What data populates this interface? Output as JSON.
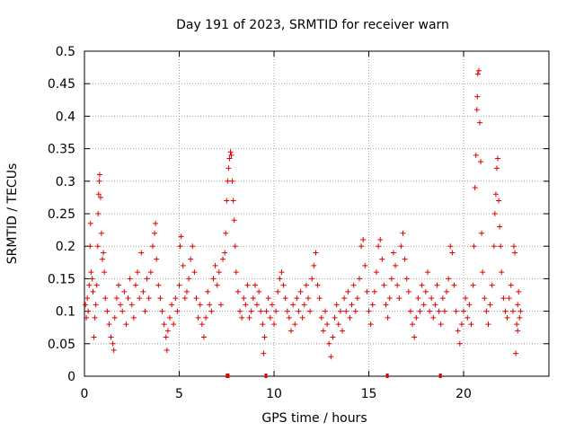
{
  "chart_data": {
    "type": "scatter",
    "title": "Day 191 of 2023, SRMTID for receiver warn",
    "xlabel": "GPS time / hours",
    "ylabel": "SRMTID / TECUs",
    "xlim": [
      0,
      24.5
    ],
    "ylim": [
      0,
      0.5
    ],
    "xticks": [
      0,
      5,
      10,
      15,
      20
    ],
    "yticks": [
      0,
      0.05,
      0.1,
      0.15,
      0.2,
      0.25,
      0.3,
      0.35,
      0.4,
      0.45,
      0.5
    ],
    "grid": true,
    "marker": "plus",
    "color": "#e00000",
    "series": [
      {
        "name": "SRMTID",
        "points": [
          [
            0.05,
            0.11
          ],
          [
            0.1,
            0.09
          ],
          [
            0.15,
            0.12
          ],
          [
            0.2,
            0.1
          ],
          [
            0.25,
            0.14
          ],
          [
            0.3,
            0.2
          ],
          [
            0.32,
            0.235
          ],
          [
            0.35,
            0.16
          ],
          [
            0.4,
            0.15
          ],
          [
            0.45,
            0.13
          ],
          [
            0.5,
            0.06
          ],
          [
            0.55,
            0.09
          ],
          [
            0.6,
            0.11
          ],
          [
            0.65,
            0.14
          ],
          [
            0.7,
            0.2
          ],
          [
            0.72,
            0.25
          ],
          [
            0.75,
            0.28
          ],
          [
            0.78,
            0.3
          ],
          [
            0.8,
            0.31
          ],
          [
            0.85,
            0.275
          ],
          [
            0.9,
            0.22
          ],
          [
            0.95,
            0.18
          ],
          [
            1.0,
            0.19
          ],
          [
            1.05,
            0.16
          ],
          [
            1.1,
            0.12
          ],
          [
            1.2,
            0.1
          ],
          [
            1.3,
            0.08
          ],
          [
            1.4,
            0.06
          ],
          [
            1.5,
            0.05
          ],
          [
            1.55,
            0.04
          ],
          [
            1.6,
            0.09
          ],
          [
            1.7,
            0.12
          ],
          [
            1.8,
            0.14
          ],
          [
            1.9,
            0.11
          ],
          [
            2.0,
            0.1
          ],
          [
            2.1,
            0.13
          ],
          [
            2.2,
            0.08
          ],
          [
            2.3,
            0.12
          ],
          [
            2.4,
            0.15
          ],
          [
            2.5,
            0.11
          ],
          [
            2.6,
            0.09
          ],
          [
            2.7,
            0.14
          ],
          [
            2.8,
            0.16
          ],
          [
            2.9,
            0.12
          ],
          [
            3.0,
            0.19
          ],
          [
            3.1,
            0.13
          ],
          [
            3.2,
            0.1
          ],
          [
            3.3,
            0.15
          ],
          [
            3.4,
            0.12
          ],
          [
            3.5,
            0.16
          ],
          [
            3.6,
            0.2
          ],
          [
            3.7,
            0.22
          ],
          [
            3.75,
            0.235
          ],
          [
            3.8,
            0.18
          ],
          [
            3.9,
            0.14
          ],
          [
            4.0,
            0.12
          ],
          [
            4.1,
            0.1
          ],
          [
            4.2,
            0.08
          ],
          [
            4.3,
            0.06
          ],
          [
            4.35,
            0.04
          ],
          [
            4.4,
            0.07
          ],
          [
            4.5,
            0.09
          ],
          [
            4.6,
            0.11
          ],
          [
            4.7,
            0.08
          ],
          [
            4.8,
            0.12
          ],
          [
            4.9,
            0.1
          ],
          [
            5.0,
            0.14
          ],
          [
            5.05,
            0.2
          ],
          [
            5.1,
            0.215
          ],
          [
            5.2,
            0.17
          ],
          [
            5.3,
            0.12
          ],
          [
            5.4,
            0.13
          ],
          [
            5.5,
            0.15
          ],
          [
            5.6,
            0.18
          ],
          [
            5.7,
            0.2
          ],
          [
            5.8,
            0.16
          ],
          [
            5.9,
            0.12
          ],
          [
            6.0,
            0.09
          ],
          [
            6.1,
            0.11
          ],
          [
            6.2,
            0.08
          ],
          [
            6.3,
            0.06
          ],
          [
            6.4,
            0.09
          ],
          [
            6.5,
            0.13
          ],
          [
            6.6,
            0.11
          ],
          [
            6.7,
            0.1
          ],
          [
            6.8,
            0.15
          ],
          [
            6.9,
            0.17
          ],
          [
            7.0,
            0.14
          ],
          [
            7.1,
            0.16
          ],
          [
            7.2,
            0.11
          ],
          [
            7.3,
            0.18
          ],
          [
            7.4,
            0.19
          ],
          [
            7.45,
            0.22
          ],
          [
            7.5,
            0.27
          ],
          [
            7.55,
            0.3
          ],
          [
            7.6,
            0.32
          ],
          [
            7.65,
            0.335
          ],
          [
            7.7,
            0.345
          ],
          [
            7.75,
            0.34
          ],
          [
            7.8,
            0.3
          ],
          [
            7.85,
            0.27
          ],
          [
            7.9,
            0.24
          ],
          [
            7.95,
            0.2
          ],
          [
            8.0,
            0.16
          ],
          [
            8.1,
            0.13
          ],
          [
            8.2,
            0.1
          ],
          [
            8.3,
            0.09
          ],
          [
            8.4,
            0.12
          ],
          [
            8.5,
            0.11
          ],
          [
            8.6,
            0.14
          ],
          [
            8.7,
            0.09
          ],
          [
            8.8,
            0.1
          ],
          [
            8.9,
            0.12
          ],
          [
            9.0,
            0.14
          ],
          [
            9.1,
            0.11
          ],
          [
            9.2,
            0.13
          ],
          [
            9.3,
            0.1
          ],
          [
            9.4,
            0.08
          ],
          [
            9.45,
            0.035
          ],
          [
            9.5,
            0.06
          ],
          [
            9.6,
            0.1
          ],
          [
            9.7,
            0.12
          ],
          [
            9.8,
            0.09
          ],
          [
            9.9,
            0.11
          ],
          [
            10.0,
            0.08
          ],
          [
            10.1,
            0.1
          ],
          [
            10.2,
            0.13
          ],
          [
            10.3,
            0.15
          ],
          [
            10.4,
            0.16
          ],
          [
            10.5,
            0.14
          ],
          [
            10.6,
            0.12
          ],
          [
            10.7,
            0.1
          ],
          [
            10.8,
            0.09
          ],
          [
            10.9,
            0.07
          ],
          [
            11.0,
            0.11
          ],
          [
            11.1,
            0.08
          ],
          [
            11.2,
            0.12
          ],
          [
            11.3,
            0.1
          ],
          [
            11.4,
            0.13
          ],
          [
            11.5,
            0.09
          ],
          [
            11.6,
            0.11
          ],
          [
            11.7,
            0.14
          ],
          [
            11.8,
            0.12
          ],
          [
            11.9,
            0.1
          ],
          [
            12.0,
            0.15
          ],
          [
            12.1,
            0.17
          ],
          [
            12.2,
            0.19
          ],
          [
            12.3,
            0.14
          ],
          [
            12.4,
            0.12
          ],
          [
            12.5,
            0.09
          ],
          [
            12.6,
            0.07
          ],
          [
            12.7,
            0.1
          ],
          [
            12.8,
            0.08
          ],
          [
            12.9,
            0.05
          ],
          [
            13.0,
            0.03
          ],
          [
            13.1,
            0.06
          ],
          [
            13.2,
            0.09
          ],
          [
            13.3,
            0.11
          ],
          [
            13.4,
            0.08
          ],
          [
            13.5,
            0.1
          ],
          [
            13.6,
            0.07
          ],
          [
            13.7,
            0.12
          ],
          [
            13.8,
            0.1
          ],
          [
            13.9,
            0.13
          ],
          [
            14.0,
            0.09
          ],
          [
            14.1,
            0.11
          ],
          [
            14.2,
            0.14
          ],
          [
            14.3,
            0.1
          ],
          [
            14.4,
            0.12
          ],
          [
            14.5,
            0.15
          ],
          [
            14.6,
            0.2
          ],
          [
            14.7,
            0.21
          ],
          [
            14.8,
            0.17
          ],
          [
            14.9,
            0.13
          ],
          [
            15.0,
            0.1
          ],
          [
            15.1,
            0.08
          ],
          [
            15.2,
            0.11
          ],
          [
            15.3,
            0.13
          ],
          [
            15.4,
            0.16
          ],
          [
            15.5,
            0.2
          ],
          [
            15.6,
            0.21
          ],
          [
            15.7,
            0.18
          ],
          [
            15.8,
            0.14
          ],
          [
            15.9,
            0.11
          ],
          [
            16.0,
            0.09
          ],
          [
            16.1,
            0.12
          ],
          [
            16.2,
            0.15
          ],
          [
            16.3,
            0.19
          ],
          [
            16.4,
            0.17
          ],
          [
            16.5,
            0.14
          ],
          [
            16.6,
            0.12
          ],
          [
            16.7,
            0.2
          ],
          [
            16.8,
            0.22
          ],
          [
            16.9,
            0.18
          ],
          [
            17.0,
            0.15
          ],
          [
            17.1,
            0.13
          ],
          [
            17.2,
            0.1
          ],
          [
            17.3,
            0.08
          ],
          [
            17.4,
            0.06
          ],
          [
            17.5,
            0.09
          ],
          [
            17.6,
            0.12
          ],
          [
            17.7,
            0.1
          ],
          [
            17.8,
            0.14
          ],
          [
            17.9,
            0.11
          ],
          [
            18.0,
            0.13
          ],
          [
            18.1,
            0.16
          ],
          [
            18.2,
            0.1
          ],
          [
            18.3,
            0.12
          ],
          [
            18.4,
            0.09
          ],
          [
            18.5,
            0.11
          ],
          [
            18.6,
            0.14
          ],
          [
            18.7,
            0.1
          ],
          [
            18.8,
            0.08
          ],
          [
            18.9,
            0.12
          ],
          [
            19.0,
            0.1
          ],
          [
            19.1,
            0.13
          ],
          [
            19.2,
            0.15
          ],
          [
            19.3,
            0.2
          ],
          [
            19.4,
            0.19
          ],
          [
            19.5,
            0.14
          ],
          [
            19.6,
            0.1
          ],
          [
            19.7,
            0.07
          ],
          [
            19.8,
            0.05
          ],
          [
            19.9,
            0.08
          ],
          [
            20.0,
            0.1
          ],
          [
            20.1,
            0.12
          ],
          [
            20.2,
            0.09
          ],
          [
            20.3,
            0.11
          ],
          [
            20.4,
            0.08
          ],
          [
            20.5,
            0.14
          ],
          [
            20.55,
            0.2
          ],
          [
            20.6,
            0.29
          ],
          [
            20.65,
            0.34
          ],
          [
            20.7,
            0.41
          ],
          [
            20.72,
            0.43
          ],
          [
            20.75,
            0.465
          ],
          [
            20.8,
            0.47
          ],
          [
            20.85,
            0.39
          ],
          [
            20.9,
            0.33
          ],
          [
            20.95,
            0.22
          ],
          [
            21.0,
            0.16
          ],
          [
            21.1,
            0.12
          ],
          [
            21.2,
            0.1
          ],
          [
            21.3,
            0.08
          ],
          [
            21.4,
            0.11
          ],
          [
            21.5,
            0.14
          ],
          [
            21.6,
            0.2
          ],
          [
            21.65,
            0.25
          ],
          [
            21.7,
            0.28
          ],
          [
            21.75,
            0.32
          ],
          [
            21.8,
            0.335
          ],
          [
            21.85,
            0.27
          ],
          [
            21.9,
            0.23
          ],
          [
            21.95,
            0.2
          ],
          [
            22.0,
            0.16
          ],
          [
            22.1,
            0.12
          ],
          [
            22.2,
            0.1
          ],
          [
            22.3,
            0.09
          ],
          [
            22.4,
            0.12
          ],
          [
            22.5,
            0.14
          ],
          [
            22.6,
            0.1
          ],
          [
            22.65,
            0.2
          ],
          [
            22.7,
            0.19
          ],
          [
            22.75,
            0.035
          ],
          [
            22.8,
            0.08
          ],
          [
            22.85,
            0.11
          ],
          [
            22.9,
            0.13
          ],
          [
            22.95,
            0.09
          ],
          [
            23.0,
            0.1
          ],
          [
            22.85,
            0.07
          ]
        ]
      }
    ],
    "gap_markers": {
      "color": "#e00000",
      "y": 0,
      "ranges": [
        [
          7.5,
          7.6
        ],
        [
          9.55,
          9.6
        ],
        [
          15.95,
          16.0
        ],
        [
          18.75,
          18.8
        ]
      ]
    }
  }
}
